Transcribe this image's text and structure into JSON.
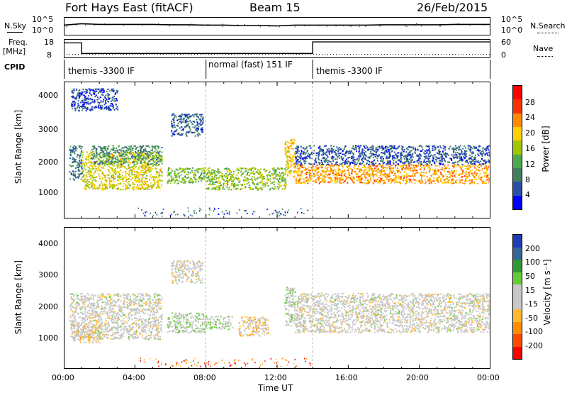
{
  "header": {
    "station": "Fort Hays East (fitACF)",
    "beam": "Beam 15",
    "date": "26/Feb/2015"
  },
  "labels": {
    "nsky": "N.Sky",
    "nsearch": "N.Search",
    "freq": "Freq.",
    "freq_unit": "[MHz]",
    "nave": "Nave",
    "cpid": "CPID",
    "time_axis": "Time UT",
    "range_axis": "Slant Range [km]",
    "power_label": "Power [dB]",
    "velocity_label": "Velocity [m s⁻¹]"
  },
  "noise_ticks": [
    "10^5",
    "10^0"
  ],
  "noise_right_ticks": [
    "10^5",
    "10^0"
  ],
  "freq_ticks": [
    "18",
    "8"
  ],
  "nave_ticks": [
    "60",
    "0"
  ],
  "cpid_segments": [
    {
      "label": "themis -3300 IF",
      "start_hr": 0,
      "end_hr": 8
    },
    {
      "label": "normal (fast) 151 IF",
      "start_hr": 8,
      "end_hr": 14
    },
    {
      "label": "themis -3300 IF",
      "start_hr": 14,
      "end_hr": 24
    }
  ],
  "time_ticks": [
    "00:00",
    "04:00",
    "08:00",
    "12:00",
    "16:00",
    "20:00",
    "00:00"
  ],
  "range_ticks": [
    "4000",
    "3000",
    "2000",
    "1000"
  ],
  "power_ticks": [
    "28",
    "24",
    "20",
    "16",
    "12",
    "8",
    "4"
  ],
  "velocity_ticks": [
    "200",
    "100",
    "50",
    "15",
    "-15",
    "-50",
    "-100",
    "-200"
  ],
  "colors": {
    "power_scale": [
      "#0000ff",
      "#2a4fa8",
      "#3f7f5f",
      "#4ca94c",
      "#a0c800",
      "#ffd000",
      "#ff8c00",
      "#ff3000",
      "#ff0000"
    ],
    "velocity_scale": [
      "#ff0000",
      "#ff4a00",
      "#ff8c00",
      "#ffb830",
      "#c8c8c8",
      "#c8c8c8",
      "#66cc33",
      "#339933",
      "#336699",
      "#1e3cb4"
    ]
  },
  "chart_data": [
    {
      "type": "line",
      "title": "",
      "panel": "noise",
      "series": [
        {
          "name": "N.Sky",
          "x": [
            0,
            1,
            2,
            3,
            4,
            5,
            6,
            7,
            8,
            9,
            10,
            11,
            12,
            13,
            14,
            15,
            16,
            17,
            18,
            19,
            20,
            21,
            22,
            23,
            24
          ],
          "values": [
            2.8,
            3.2,
            3.0,
            3.0,
            3.0,
            3.0,
            2.9,
            2.9,
            2.8,
            2.8,
            2.7,
            2.7,
            2.6,
            2.8,
            2.8,
            2.8,
            2.8,
            2.8,
            2.9,
            2.9,
            2.9,
            2.9,
            3.0,
            3.0,
            3.0
          ]
        }
      ],
      "ylim": [
        0,
        5
      ],
      "xlim": [
        0,
        24
      ]
    },
    {
      "type": "line",
      "title": "",
      "panel": "frequency",
      "series": [
        {
          "name": "Freq.",
          "x": [
            0,
            1,
            1,
            14,
            14,
            24
          ],
          "values": [
            16,
            16,
            10.5,
            10.5,
            16.5,
            16.5
          ]
        },
        {
          "name": "Nave",
          "x": [
            0,
            24
          ],
          "values": [
            10,
            10
          ]
        }
      ],
      "ylim": [
        8,
        18
      ],
      "xlim": [
        0,
        24
      ]
    },
    {
      "type": "heatmap",
      "title": "",
      "panel": "power",
      "xlabel": "",
      "ylabel": "Slant Range [km]",
      "zlabel": "Power [dB]",
      "xlim": [
        0,
        24
      ],
      "ylim": [
        180,
        4500
      ],
      "zlim": [
        0,
        32
      ],
      "bands": [
        {
          "t0": 0.3,
          "t1": 1.0,
          "r0": 1400,
          "r1": 2500,
          "z": 8
        },
        {
          "t0": 1.0,
          "t1": 5.5,
          "r0": 1100,
          "r1": 2300,
          "z": 18
        },
        {
          "t0": 1.5,
          "t1": 5.5,
          "r0": 1900,
          "r1": 2500,
          "z": 10
        },
        {
          "t0": 5.8,
          "t1": 8.0,
          "r0": 1300,
          "r1": 1800,
          "z": 14
        },
        {
          "t0": 8.0,
          "t1": 12.5,
          "r0": 1100,
          "r1": 1800,
          "z": 15
        },
        {
          "t0": 12.4,
          "t1": 13.0,
          "r0": 1500,
          "r1": 2700,
          "z": 20
        },
        {
          "t0": 13.0,
          "t1": 24.0,
          "r0": 1300,
          "r1": 1900,
          "z": 22
        },
        {
          "t0": 13.0,
          "t1": 24.0,
          "r0": 1900,
          "r1": 2500,
          "z": 6
        },
        {
          "t0": 6.0,
          "t1": 7.8,
          "r0": 2800,
          "r1": 3500,
          "z": 6
        },
        {
          "t0": 0.4,
          "t1": 3.0,
          "r0": 3600,
          "r1": 4300,
          "z": 5
        }
      ]
    },
    {
      "type": "heatmap",
      "title": "",
      "panel": "velocity",
      "xlabel": "Time UT",
      "ylabel": "Slant Range [km]",
      "zlabel": "Velocity [m s⁻¹]",
      "xlim": [
        0,
        24
      ],
      "ylim": [
        180,
        4500
      ],
      "zlim": [
        -250,
        250
      ],
      "bands": [
        {
          "t0": 0.3,
          "t1": 5.5,
          "r0": 1100,
          "r1": 2500,
          "z": -5
        },
        {
          "t0": 0.5,
          "t1": 2.0,
          "r0": 1000,
          "r1": 1600,
          "z": -40
        },
        {
          "t0": 5.8,
          "t1": 8.0,
          "r0": 1300,
          "r1": 1900,
          "z": 30
        },
        {
          "t0": 8.0,
          "t1": 9.5,
          "r0": 1400,
          "r1": 1800,
          "z": 25
        },
        {
          "t0": 9.8,
          "t1": 11.5,
          "r0": 1200,
          "r1": 1800,
          "z": -40
        },
        {
          "t0": 12.4,
          "t1": 13.0,
          "r0": 1500,
          "r1": 2700,
          "z": 30
        },
        {
          "t0": 13.0,
          "t1": 24.0,
          "r0": 1300,
          "r1": 2500,
          "z": -5
        },
        {
          "t0": 6.0,
          "t1": 7.8,
          "r0": 2800,
          "r1": 3500,
          "z": -5
        }
      ]
    }
  ]
}
